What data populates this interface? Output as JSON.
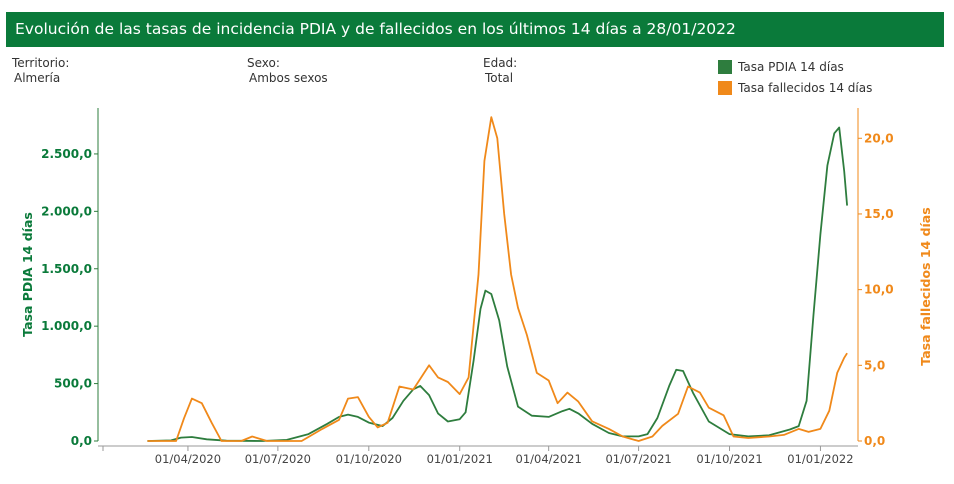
{
  "header": {
    "title": "Evolución de las tasas de incidencia PDIA y de fallecidos en los últimos 14 días a 28/01/2022"
  },
  "filters": [
    {
      "label": "Territorio:",
      "value": "Almería"
    },
    {
      "label": "Sexo:",
      "value": "Ambos sexos"
    },
    {
      "label": "Edad:",
      "value": "Total"
    }
  ],
  "colors": {
    "pdia": "#2e7d3e",
    "fallecidos": "#f0891a",
    "brand": "#0a7a3a"
  },
  "chart_data": {
    "type": "line",
    "title": "Evolución de las tasas de incidencia PDIA y de fallecidos en los últimos 14 días a 28/01/2022",
    "legend_position": "top-right",
    "x_axis": {
      "type": "date",
      "range": [
        "2020-01-01",
        "2022-02-08"
      ],
      "ticks": [
        {
          "date": "2020-04-01",
          "label": "01/04/2020"
        },
        {
          "date": "2020-07-01",
          "label": "01/07/2020"
        },
        {
          "date": "2020-10-01",
          "label": "01/10/2020"
        },
        {
          "date": "2021-01-01",
          "label": "01/01/2021"
        },
        {
          "date": "2021-04-01",
          "label": "01/04/2021"
        },
        {
          "date": "2021-07-01",
          "label": "01/07/2021"
        },
        {
          "date": "2021-10-01",
          "label": "01/10/2021"
        },
        {
          "date": "2022-01-01",
          "label": "01/01/2022"
        }
      ]
    },
    "y_left": {
      "label": "Tasa PDIA 14 días",
      "range": [
        0,
        2900
      ],
      "ticks": [
        {
          "value": 0,
          "label": "0,0"
        },
        {
          "value": 500,
          "label": "500,0"
        },
        {
          "value": 1000,
          "label": "1.000,0"
        },
        {
          "value": 1500,
          "label": "1.500,0"
        },
        {
          "value": 2000,
          "label": "2.000,0"
        },
        {
          "value": 2500,
          "label": "2.500,0"
        }
      ]
    },
    "y_right": {
      "label": "Tasa fallecidos 14 días",
      "range": [
        0,
        22
      ],
      "ticks": [
        {
          "value": 0,
          "label": "0,0"
        },
        {
          "value": 5,
          "label": "5,0"
        },
        {
          "value": 10,
          "label": "10,0"
        },
        {
          "value": 15,
          "label": "15,0"
        },
        {
          "value": 20,
          "label": "20,0"
        }
      ]
    },
    "series": [
      {
        "name": "Tasa PDIA 14 días",
        "axis": "left",
        "points": [
          [
            "2020-02-20",
            0
          ],
          [
            "2020-03-15",
            5
          ],
          [
            "2020-03-25",
            30
          ],
          [
            "2020-04-05",
            35
          ],
          [
            "2020-04-20",
            15
          ],
          [
            "2020-05-10",
            3
          ],
          [
            "2020-06-15",
            0
          ],
          [
            "2020-07-10",
            10
          ],
          [
            "2020-08-01",
            60
          ],
          [
            "2020-08-20",
            150
          ],
          [
            "2020-09-01",
            210
          ],
          [
            "2020-09-10",
            230
          ],
          [
            "2020-09-20",
            210
          ],
          [
            "2020-10-01",
            160
          ],
          [
            "2020-10-15",
            130
          ],
          [
            "2020-10-25",
            200
          ],
          [
            "2020-11-05",
            350
          ],
          [
            "2020-11-15",
            450
          ],
          [
            "2020-11-22",
            480
          ],
          [
            "2020-12-01",
            400
          ],
          [
            "2020-12-10",
            240
          ],
          [
            "2020-12-20",
            170
          ],
          [
            "2021-01-01",
            190
          ],
          [
            "2021-01-07",
            250
          ],
          [
            "2021-01-15",
            700
          ],
          [
            "2021-01-22",
            1150
          ],
          [
            "2021-01-27",
            1310
          ],
          [
            "2021-02-02",
            1280
          ],
          [
            "2021-02-10",
            1050
          ],
          [
            "2021-02-18",
            650
          ],
          [
            "2021-03-01",
            300
          ],
          [
            "2021-03-15",
            220
          ],
          [
            "2021-04-01",
            210
          ],
          [
            "2021-04-15",
            260
          ],
          [
            "2021-04-22",
            280
          ],
          [
            "2021-05-01",
            240
          ],
          [
            "2021-05-15",
            150
          ],
          [
            "2021-06-01",
            70
          ],
          [
            "2021-06-15",
            40
          ],
          [
            "2021-07-01",
            40
          ],
          [
            "2021-07-10",
            60
          ],
          [
            "2021-07-20",
            200
          ],
          [
            "2021-08-01",
            480
          ],
          [
            "2021-08-08",
            620
          ],
          [
            "2021-08-15",
            610
          ],
          [
            "2021-08-25",
            420
          ],
          [
            "2021-09-10",
            170
          ],
          [
            "2021-10-01",
            60
          ],
          [
            "2021-10-20",
            40
          ],
          [
            "2021-11-10",
            50
          ],
          [
            "2021-12-01",
            100
          ],
          [
            "2021-12-10",
            130
          ],
          [
            "2021-12-18",
            350
          ],
          [
            "2021-12-25",
            1100
          ],
          [
            "2022-01-01",
            1800
          ],
          [
            "2022-01-08",
            2400
          ],
          [
            "2022-01-15",
            2680
          ],
          [
            "2022-01-20",
            2730
          ],
          [
            "2022-01-25",
            2350
          ],
          [
            "2022-01-28",
            2050
          ]
        ]
      },
      {
        "name": "Tasa fallecidos 14 días",
        "axis": "right",
        "points": [
          [
            "2020-02-20",
            0
          ],
          [
            "2020-03-20",
            0
          ],
          [
            "2020-03-28",
            1.5
          ],
          [
            "2020-04-05",
            2.8
          ],
          [
            "2020-04-15",
            2.5
          ],
          [
            "2020-04-25",
            1.2
          ],
          [
            "2020-05-05",
            0
          ],
          [
            "2020-05-25",
            0
          ],
          [
            "2020-06-05",
            0.3
          ],
          [
            "2020-06-20",
            0
          ],
          [
            "2020-07-25",
            0
          ],
          [
            "2020-08-15",
            0.8
          ],
          [
            "2020-09-01",
            1.4
          ],
          [
            "2020-09-10",
            2.8
          ],
          [
            "2020-09-20",
            2.9
          ],
          [
            "2020-10-01",
            1.6
          ],
          [
            "2020-10-10",
            0.9
          ],
          [
            "2020-10-20",
            1.2
          ],
          [
            "2020-11-01",
            3.6
          ],
          [
            "2020-11-15",
            3.4
          ],
          [
            "2020-12-01",
            5.0
          ],
          [
            "2020-12-10",
            4.2
          ],
          [
            "2020-12-20",
            3.9
          ],
          [
            "2021-01-01",
            3.1
          ],
          [
            "2021-01-10",
            4.2
          ],
          [
            "2021-01-20",
            11.0
          ],
          [
            "2021-01-26",
            18.5
          ],
          [
            "2021-02-02",
            21.4
          ],
          [
            "2021-02-08",
            20.0
          ],
          [
            "2021-02-15",
            15.0
          ],
          [
            "2021-02-22",
            11.0
          ],
          [
            "2021-03-01",
            8.8
          ],
          [
            "2021-03-10",
            7.0
          ],
          [
            "2021-03-20",
            4.5
          ],
          [
            "2021-04-01",
            4.0
          ],
          [
            "2021-04-10",
            2.5
          ],
          [
            "2021-04-20",
            3.2
          ],
          [
            "2021-05-01",
            2.6
          ],
          [
            "2021-05-15",
            1.3
          ],
          [
            "2021-06-01",
            0.8
          ],
          [
            "2021-06-15",
            0.3
          ],
          [
            "2021-07-01",
            0.0
          ],
          [
            "2021-07-15",
            0.3
          ],
          [
            "2021-07-25",
            1.0
          ],
          [
            "2021-08-10",
            1.8
          ],
          [
            "2021-08-20",
            3.6
          ],
          [
            "2021-09-01",
            3.2
          ],
          [
            "2021-09-10",
            2.2
          ],
          [
            "2021-09-25",
            1.7
          ],
          [
            "2021-10-05",
            0.3
          ],
          [
            "2021-10-20",
            0.2
          ],
          [
            "2021-11-10",
            0.3
          ],
          [
            "2021-11-25",
            0.4
          ],
          [
            "2021-12-10",
            0.8
          ],
          [
            "2021-12-20",
            0.6
          ],
          [
            "2022-01-01",
            0.8
          ],
          [
            "2022-01-10",
            2.0
          ],
          [
            "2022-01-18",
            4.5
          ],
          [
            "2022-01-25",
            5.5
          ],
          [
            "2022-01-28",
            5.8
          ]
        ]
      }
    ]
  }
}
